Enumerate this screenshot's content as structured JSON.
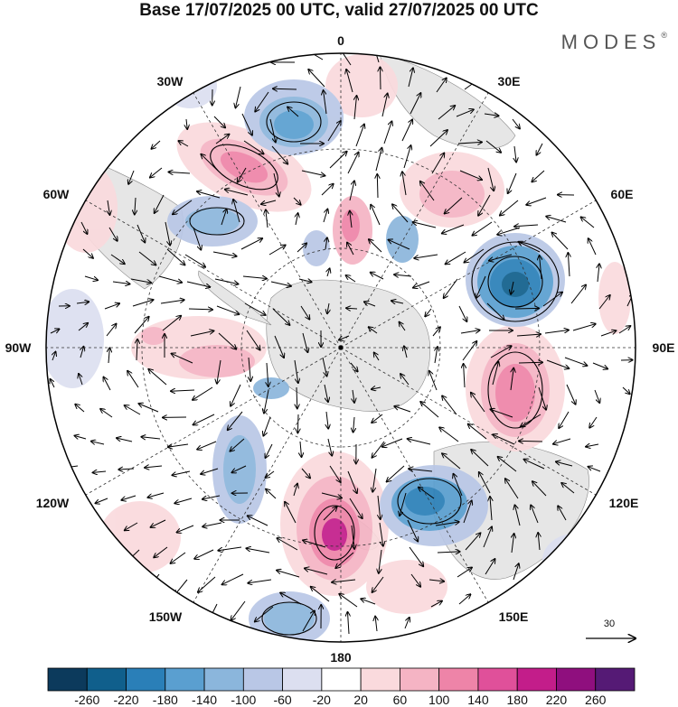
{
  "title": "Base 17/07/2025 00 UTC, valid 27/07/2025 00 UTC",
  "brand": "MODES",
  "brand_mark": "®",
  "meridian_labels": {
    "lon_0": "0",
    "lon_30e": "30E",
    "lon_60e": "60E",
    "lon_90e": "90E",
    "lon_120e": "120E",
    "lon_150e": "150E",
    "lon_180": "180",
    "lon_150w": "150W",
    "lon_120w": "120W",
    "lon_90w": "90W",
    "lon_60w": "60W",
    "lon_30w": "30W"
  },
  "reference_vector": {
    "value": "30"
  },
  "colorbar": {
    "ticks": [
      "-260",
      "-220",
      "-180",
      "-140",
      "-100",
      "-60",
      "-20",
      "20",
      "60",
      "100",
      "140",
      "180",
      "220",
      "260"
    ],
    "colors": [
      "#0c3a5c",
      "#105f8c",
      "#2a7fb8",
      "#5a9fd0",
      "#8bb6dc",
      "#b9c7e6",
      "#dcdff0",
      "#ffffff",
      "#fadadd",
      "#f5b4c4",
      "#ee84a8",
      "#e0509a",
      "#c31d8a",
      "#8f0f7e",
      "#551a75"
    ]
  },
  "colors": {
    "land": "#e6e6e6",
    "positive_center": "#c31d8a",
    "negative_center": "#105f8c"
  }
}
